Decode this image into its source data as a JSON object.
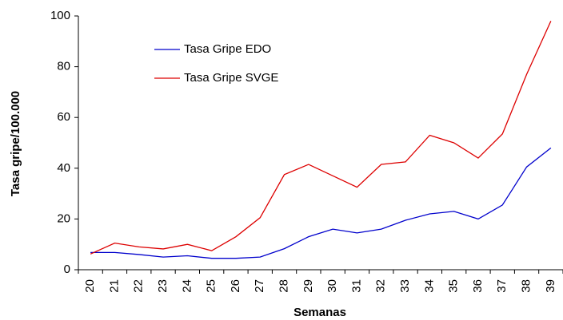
{
  "chart_data": {
    "type": "line",
    "x_label": "Semanas",
    "y_label": "Tasa gripe/100.000",
    "categories": [
      "20",
      "21",
      "22",
      "23",
      "24",
      "25",
      "26",
      "27",
      "28",
      "29",
      "30",
      "31",
      "32",
      "33",
      "34",
      "35",
      "36",
      "37",
      "38",
      "39"
    ],
    "series": [
      {
        "name": "Tasa Gripe EDO",
        "color": "#0000cc",
        "values": [
          6.8,
          6.8,
          6,
          5,
          5.5,
          4.5,
          4.5,
          5,
          8.3,
          13,
          16,
          14.5,
          16,
          19.5,
          22,
          23,
          20,
          25.5,
          40.5,
          48
        ]
      },
      {
        "name": "Tasa Gripe SVGE",
        "color": "#dd0000",
        "values": [
          6.2,
          10.5,
          9,
          8.2,
          10,
          7.5,
          13,
          20.5,
          37.5,
          41.5,
          37,
          32.5,
          41.5,
          42.5,
          53,
          50,
          44,
          53.5,
          77,
          98
        ]
      }
    ],
    "ylim": [
      0,
      100
    ],
    "yticks": [
      0,
      20,
      40,
      60,
      80,
      100
    ],
    "grid": false,
    "legend": "upper left"
  }
}
